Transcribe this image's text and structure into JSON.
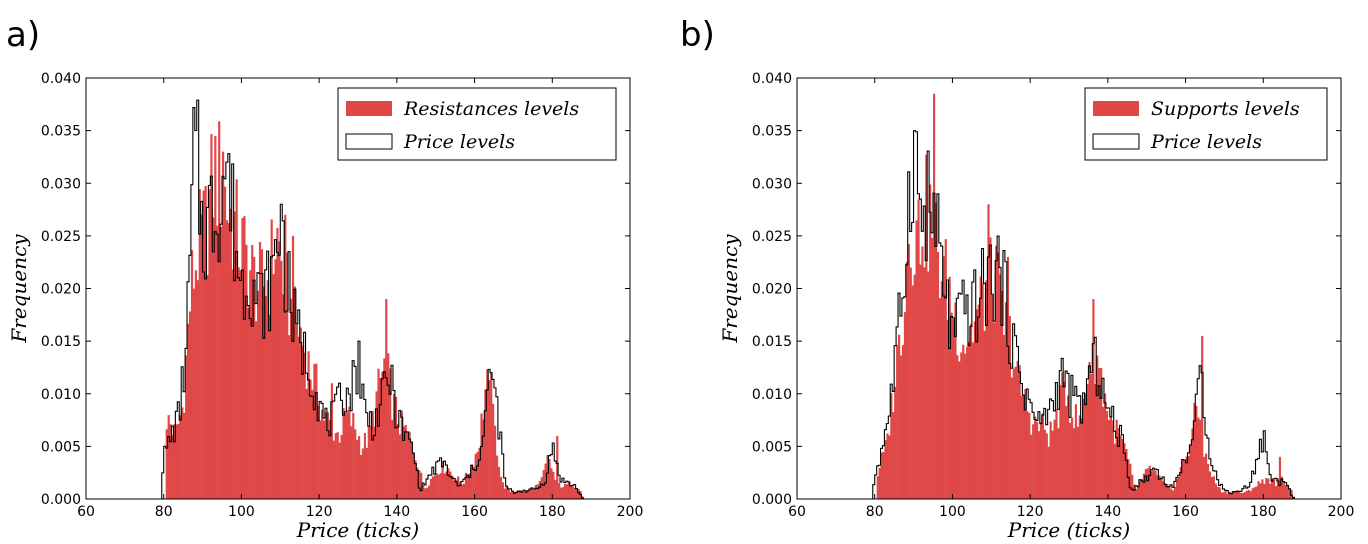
{
  "colors": {
    "fill": "#e04848",
    "outline": "#000000",
    "background": "#ffffff"
  },
  "chart_data": [
    {
      "type": "histogram",
      "panel_label": "a)",
      "xlabel": "Price (ticks)",
      "ylabel": "Frequency",
      "xlim": [
        60,
        200
      ],
      "ylim": [
        0,
        0.04
      ],
      "xticks": [
        "60",
        "80",
        "100",
        "120",
        "140",
        "160",
        "180",
        "200"
      ],
      "yticks": [
        "0.000",
        "0.005",
        "0.010",
        "0.015",
        "0.020",
        "0.025",
        "0.030",
        "0.035",
        "0.040"
      ],
      "legend": {
        "position": "upper right",
        "entries": [
          "Resistances levels",
          "Price levels"
        ]
      },
      "anchors_filled": [
        [
          80,
          0
        ],
        [
          81,
          0.008
        ],
        [
          83,
          0.006
        ],
        [
          85,
          0.009
        ],
        [
          87,
          0.02
        ],
        [
          89,
          0.024
        ],
        [
          91,
          0.026
        ],
        [
          93,
          0.031
        ],
        [
          95,
          0.03
        ],
        [
          97,
          0.027
        ],
        [
          99,
          0.025
        ],
        [
          101,
          0.023
        ],
        [
          103,
          0.021
        ],
        [
          105,
          0.02
        ],
        [
          107,
          0.021
        ],
        [
          109,
          0.025
        ],
        [
          111,
          0.021
        ],
        [
          113,
          0.017
        ],
        [
          115,
          0.016
        ],
        [
          117,
          0.013
        ],
        [
          119,
          0.011
        ],
        [
          121,
          0.008
        ],
        [
          123,
          0.007
        ],
        [
          125,
          0.006
        ],
        [
          127,
          0.008
        ],
        [
          129,
          0.007
        ],
        [
          131,
          0.005
        ],
        [
          133,
          0.006
        ],
        [
          135,
          0.01
        ],
        [
          137,
          0.013
        ],
        [
          139,
          0.009
        ],
        [
          141,
          0.007
        ],
        [
          143,
          0.006
        ],
        [
          145,
          0.004
        ],
        [
          147,
          0.001
        ],
        [
          149,
          0.002
        ],
        [
          151,
          0.003
        ],
        [
          153,
          0.003
        ],
        [
          155,
          0.002
        ],
        [
          157,
          0.0015
        ],
        [
          159,
          0.003
        ],
        [
          161,
          0.005
        ],
        [
          163,
          0.011
        ],
        [
          165,
          0.007
        ],
        [
          167,
          0.0015
        ],
        [
          169,
          0.0007
        ],
        [
          171,
          0.0008
        ],
        [
          173,
          0.0007
        ],
        [
          175,
          0.001
        ],
        [
          177,
          0.0015
        ],
        [
          179,
          0.004
        ],
        [
          181,
          0.0015
        ],
        [
          183,
          0.0012
        ],
        [
          185,
          0.0015
        ],
        [
          187,
          0.001
        ],
        [
          188,
          0
        ]
      ],
      "anchors_outline": [
        [
          79,
          0
        ],
        [
          80,
          0.004
        ],
        [
          82,
          0.006
        ],
        [
          84,
          0.008
        ],
        [
          86,
          0.015
        ],
        [
          88,
          0.035
        ],
        [
          90,
          0.025
        ],
        [
          92,
          0.027
        ],
        [
          94,
          0.028
        ],
        [
          96,
          0.032
        ],
        [
          98,
          0.026
        ],
        [
          100,
          0.02
        ],
        [
          102,
          0.022
        ],
        [
          104,
          0.019
        ],
        [
          106,
          0.019
        ],
        [
          108,
          0.021
        ],
        [
          110,
          0.026
        ],
        [
          112,
          0.02
        ],
        [
          114,
          0.016
        ],
        [
          116,
          0.014
        ],
        [
          118,
          0.012
        ],
        [
          120,
          0.009
        ],
        [
          122,
          0.007
        ],
        [
          124,
          0.008
        ],
        [
          126,
          0.01
        ],
        [
          128,
          0.01
        ],
        [
          130,
          0.013
        ],
        [
          132,
          0.008
        ],
        [
          134,
          0.007
        ],
        [
          136,
          0.009
        ],
        [
          138,
          0.012
        ],
        [
          140,
          0.008
        ],
        [
          142,
          0.006
        ],
        [
          144,
          0.005
        ],
        [
          146,
          0.0008
        ],
        [
          148,
          0.002
        ],
        [
          150,
          0.003
        ],
        [
          152,
          0.0035
        ],
        [
          154,
          0.002
        ],
        [
          156,
          0.0012
        ],
        [
          158,
          0.002
        ],
        [
          160,
          0.003
        ],
        [
          162,
          0.005
        ],
        [
          164,
          0.012
        ],
        [
          166,
          0.008
        ],
        [
          168,
          0.0012
        ],
        [
          170,
          0.0006
        ],
        [
          172,
          0.0008
        ],
        [
          174,
          0.0008
        ],
        [
          176,
          0.001
        ],
        [
          178,
          0.0015
        ],
        [
          180,
          0.005
        ],
        [
          182,
          0.002
        ],
        [
          184,
          0.0015
        ],
        [
          186,
          0.0012
        ],
        [
          187,
          0.0005
        ],
        [
          188,
          0
        ]
      ],
      "spikes_filled": [
        [
          95,
          0.033
        ],
        [
          103,
          0.023
        ],
        [
          111,
          0.027
        ],
        [
          113,
          0.025
        ],
        [
          123,
          0.011
        ],
        [
          137,
          0.019
        ],
        [
          164,
          0.012
        ],
        [
          181,
          0.006
        ]
      ],
      "spikes_outline": [
        [
          88,
          0.035
        ],
        [
          96,
          0.032
        ],
        [
          110,
          0.028
        ],
        [
          130,
          0.015
        ],
        [
          164,
          0.012
        ]
      ]
    },
    {
      "type": "histogram",
      "panel_label": "b)",
      "xlabel": "Price (ticks)",
      "ylabel": "Frequency",
      "xlim": [
        60,
        200
      ],
      "ylim": [
        0,
        0.04
      ],
      "xticks": [
        "60",
        "80",
        "100",
        "120",
        "140",
        "160",
        "180",
        "200"
      ],
      "yticks": [
        "0.000",
        "0.005",
        "0.010",
        "0.015",
        "0.020",
        "0.025",
        "0.030",
        "0.035",
        "0.040"
      ],
      "legend": {
        "position": "upper right",
        "entries": [
          "Supports levels",
          "Price levels"
        ]
      },
      "anchors_filled": [
        [
          80,
          0
        ],
        [
          81,
          0.003
        ],
        [
          83,
          0.005
        ],
        [
          85,
          0.011
        ],
        [
          87,
          0.017
        ],
        [
          89,
          0.026
        ],
        [
          91,
          0.025
        ],
        [
          93,
          0.027
        ],
        [
          95,
          0.026
        ],
        [
          97,
          0.022
        ],
        [
          99,
          0.02
        ],
        [
          101,
          0.017
        ],
        [
          103,
          0.015
        ],
        [
          105,
          0.016
        ],
        [
          107,
          0.018
        ],
        [
          109,
          0.02
        ],
        [
          111,
          0.021
        ],
        [
          113,
          0.017
        ],
        [
          115,
          0.015
        ],
        [
          117,
          0.011
        ],
        [
          119,
          0.009
        ],
        [
          121,
          0.007
        ],
        [
          123,
          0.007
        ],
        [
          125,
          0.006
        ],
        [
          127,
          0.008
        ],
        [
          129,
          0.011
        ],
        [
          131,
          0.008
        ],
        [
          133,
          0.007
        ],
        [
          135,
          0.013
        ],
        [
          137,
          0.014
        ],
        [
          139,
          0.01
        ],
        [
          141,
          0.007
        ],
        [
          143,
          0.006
        ],
        [
          145,
          0.004
        ],
        [
          147,
          0.0008
        ],
        [
          149,
          0.002
        ],
        [
          151,
          0.003
        ],
        [
          153,
          0.002
        ],
        [
          155,
          0.0012
        ],
        [
          157,
          0.001
        ],
        [
          159,
          0.003
        ],
        [
          161,
          0.005
        ],
        [
          163,
          0.009
        ],
        [
          165,
          0.004
        ],
        [
          167,
          0.002
        ],
        [
          169,
          0.0008
        ],
        [
          171,
          0.0006
        ],
        [
          173,
          0.0008
        ],
        [
          175,
          0.0005
        ],
        [
          177,
          0.001
        ],
        [
          179,
          0.0015
        ],
        [
          181,
          0.002
        ],
        [
          183,
          0.0015
        ],
        [
          185,
          0.002
        ],
        [
          187,
          0.001
        ],
        [
          188,
          0
        ]
      ],
      "anchors_outline": [
        [
          79,
          0
        ],
        [
          80,
          0.002
        ],
        [
          82,
          0.005
        ],
        [
          84,
          0.009
        ],
        [
          86,
          0.015
        ],
        [
          88,
          0.024
        ],
        [
          90,
          0.035
        ],
        [
          92,
          0.026
        ],
        [
          94,
          0.028
        ],
        [
          96,
          0.025
        ],
        [
          98,
          0.02
        ],
        [
          100,
          0.015
        ],
        [
          102,
          0.017
        ],
        [
          104,
          0.018
        ],
        [
          106,
          0.018
        ],
        [
          108,
          0.02
        ],
        [
          110,
          0.021
        ],
        [
          112,
          0.022
        ],
        [
          114,
          0.018
        ],
        [
          116,
          0.014
        ],
        [
          118,
          0.011
        ],
        [
          120,
          0.009
        ],
        [
          122,
          0.007
        ],
        [
          124,
          0.008
        ],
        [
          126,
          0.009
        ],
        [
          128,
          0.012
        ],
        [
          130,
          0.01
        ],
        [
          132,
          0.009
        ],
        [
          134,
          0.009
        ],
        [
          136,
          0.013
        ],
        [
          138,
          0.012
        ],
        [
          140,
          0.008
        ],
        [
          142,
          0.007
        ],
        [
          144,
          0.005
        ],
        [
          146,
          0.0008
        ],
        [
          148,
          0.0015
        ],
        [
          150,
          0.002
        ],
        [
          152,
          0.003
        ],
        [
          154,
          0.002
        ],
        [
          156,
          0.001
        ],
        [
          158,
          0.002
        ],
        [
          160,
          0.004
        ],
        [
          162,
          0.006
        ],
        [
          164,
          0.012
        ],
        [
          166,
          0.005
        ],
        [
          168,
          0.002
        ],
        [
          170,
          0.0008
        ],
        [
          172,
          0.0006
        ],
        [
          174,
          0.0008
        ],
        [
          176,
          0.0012
        ],
        [
          178,
          0.003
        ],
        [
          180,
          0.006
        ],
        [
          182,
          0.002
        ],
        [
          184,
          0.0015
        ],
        [
          186,
          0.002
        ],
        [
          187,
          0.0005
        ],
        [
          188,
          0
        ]
      ],
      "spikes_filled": [
        [
          92,
          0.024
        ],
        [
          95,
          0.0385
        ],
        [
          109,
          0.028
        ],
        [
          114,
          0.023
        ],
        [
          136,
          0.019
        ],
        [
          164,
          0.0155
        ],
        [
          184,
          0.004
        ]
      ],
      "spikes_outline": [
        [
          90,
          0.035
        ],
        [
          96,
          0.029
        ],
        [
          112,
          0.022
        ],
        [
          164,
          0.012
        ]
      ]
    }
  ]
}
